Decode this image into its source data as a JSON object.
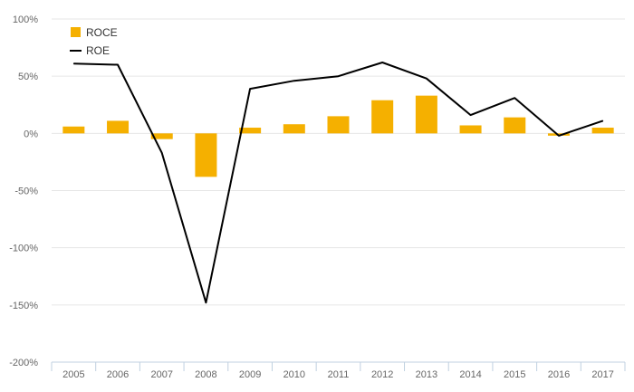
{
  "chart_data": {
    "type": "bar",
    "categories": [
      "2005",
      "2006",
      "2007",
      "2008",
      "2009",
      "2010",
      "2011",
      "2012",
      "2013",
      "2014",
      "2015",
      "2016",
      "2017"
    ],
    "series": [
      {
        "name": "ROCE",
        "type": "bar",
        "color": "#f5b000",
        "values": [
          6,
          11,
          -5,
          -38,
          5,
          8,
          15,
          29,
          33,
          7,
          14,
          -2,
          5
        ]
      },
      {
        "name": "ROE",
        "type": "line",
        "color": "#000000",
        "values": [
          61,
          60,
          -17,
          -148,
          39,
          46,
          50,
          62,
          48,
          16,
          31,
          -2,
          11
        ]
      }
    ],
    "yticks": [
      "100%",
      "50%",
      "0%",
      "-50%",
      "-100%",
      "-150%",
      "-200%"
    ],
    "ylim": [
      -200,
      100
    ],
    "grid": true,
    "legend": "top-left"
  }
}
